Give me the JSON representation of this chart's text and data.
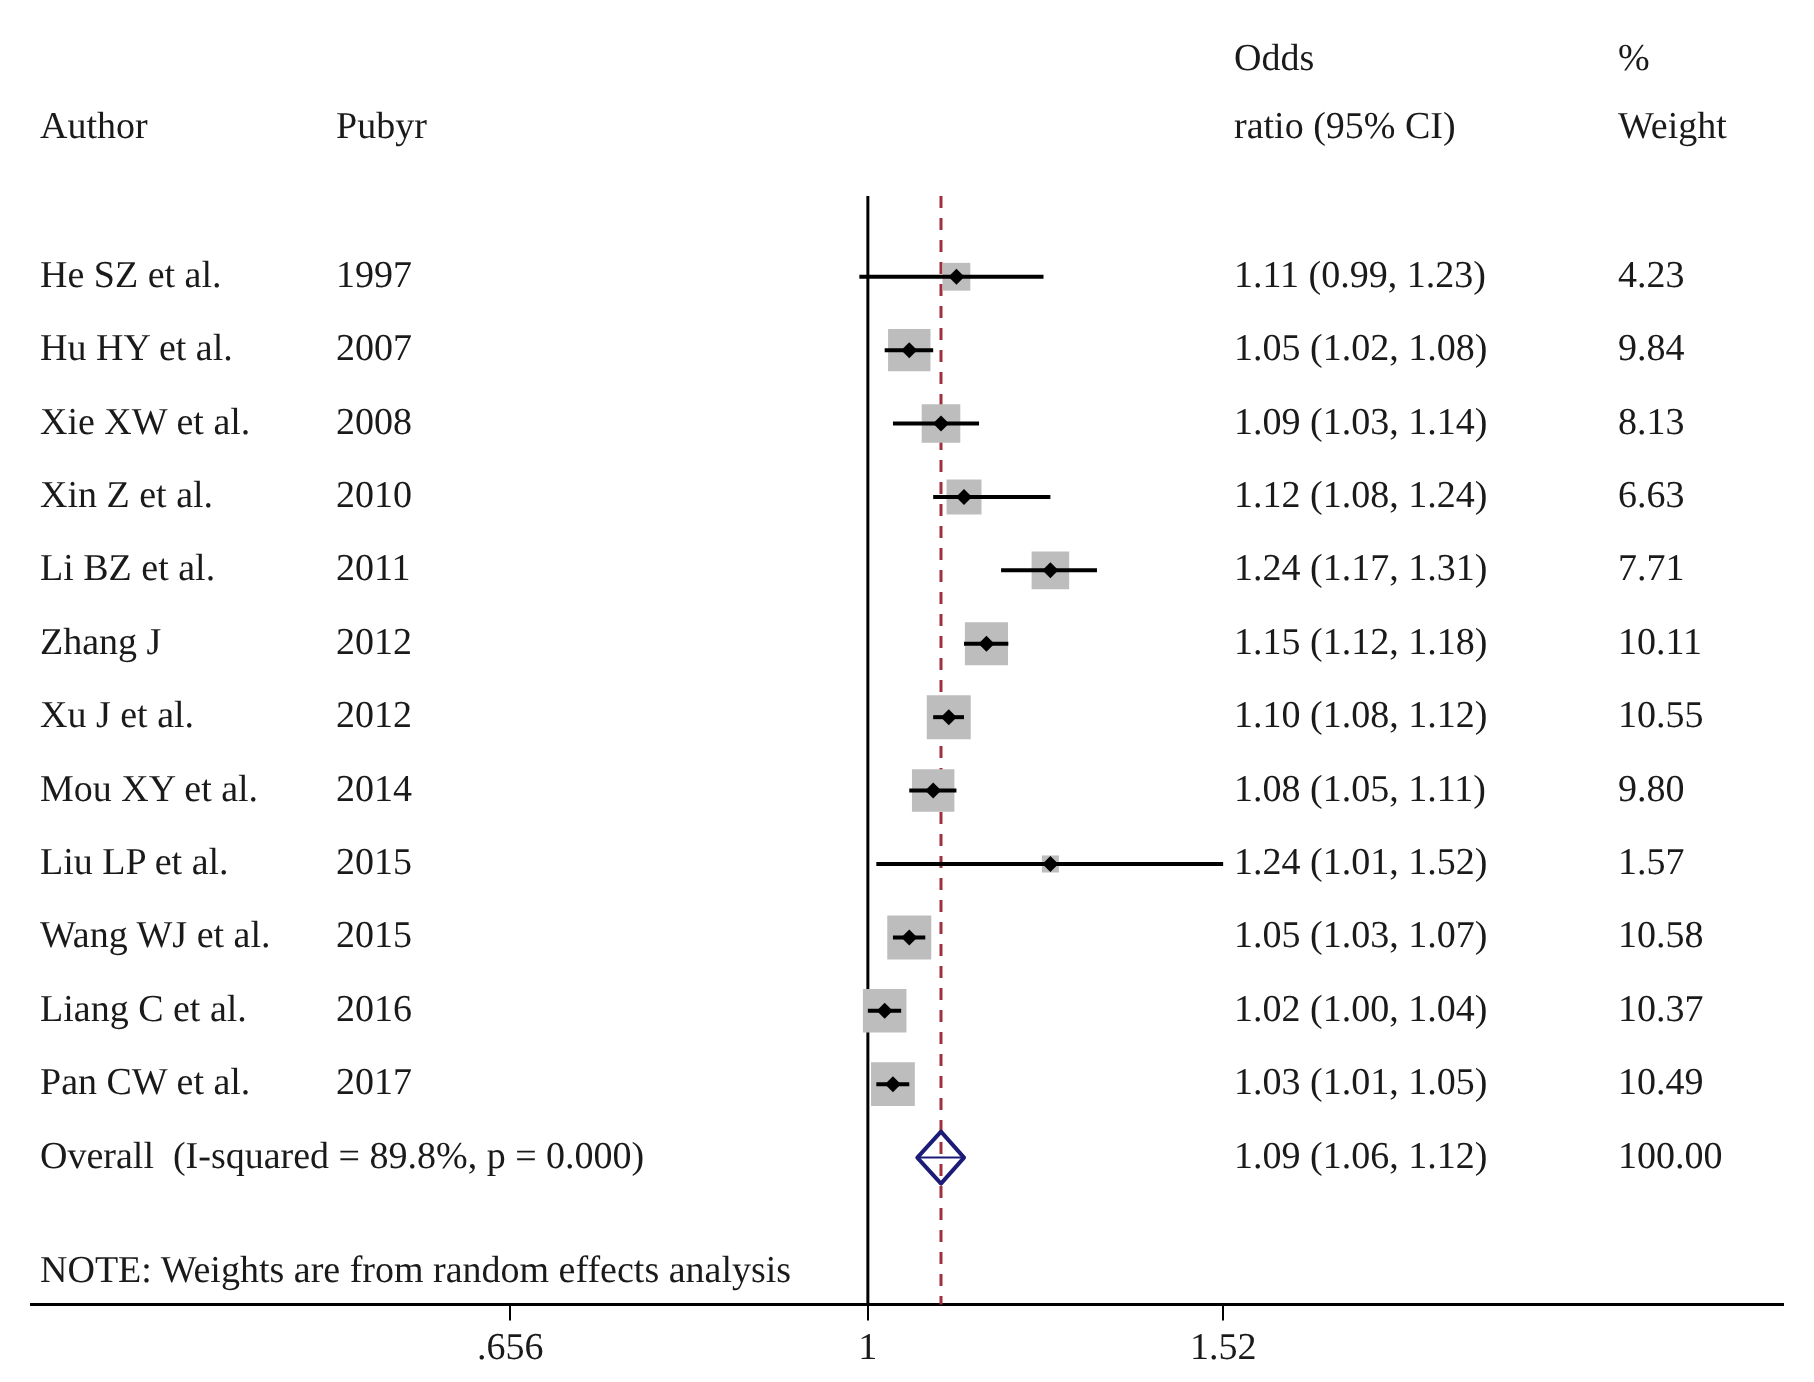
{
  "chart_data": {
    "type": "scatter",
    "orientation": "horizontal",
    "log": "x",
    "grid": false,
    "legend": false,
    "categories": [
      "He SZ et al.",
      "Hu HY et al.",
      "Xie XW et al.",
      "Xin Z et al.",
      "Li BZ et al.",
      "Zhang J",
      "Xu J et al.",
      "Mou XY et al.",
      "Liu LP et al.",
      "Wang WJ et al.",
      "Liang C et al.",
      "Pan CW et al.",
      "Overall  (I-squared = 89.8%, p = 0.000)"
    ],
    "series": [
      {
        "marker": "square",
        "color": "#bdbdbd",
        "values": [
          1.11,
          1.05,
          1.09,
          1.12,
          1.24,
          1.15,
          1.1,
          1.08,
          1.24,
          1.05,
          1.02,
          1.03,
          null
        ],
        "errors": [
          [
            0.99,
            1.23
          ],
          [
            1.02,
            1.08
          ],
          [
            1.03,
            1.14
          ],
          [
            1.08,
            1.24
          ],
          [
            1.17,
            1.31
          ],
          [
            1.12,
            1.18
          ],
          [
            1.08,
            1.12
          ],
          [
            1.05,
            1.11
          ],
          [
            1.01,
            1.52
          ],
          [
            1.03,
            1.07
          ],
          [
            1.0,
            1.04
          ],
          [
            1.01,
            1.05
          ],
          null
        ],
        "sizes": [
          0.4,
          0.93,
          0.77,
          0.63,
          0.73,
          0.96,
          1.0,
          0.93,
          0.15,
          1,
          0.98,
          0.99,
          null
        ]
      },
      {
        "marker": "diamond",
        "color": "#1c1c78",
        "values": [
          null,
          null,
          null,
          null,
          null,
          null,
          null,
          null,
          null,
          null,
          null,
          null,
          1.09
        ],
        "errors": [
          null,
          null,
          null,
          null,
          null,
          null,
          null,
          null,
          null,
          null,
          null,
          null,
          [
            1.06,
            1.12
          ]
        ]
      }
    ],
    "xlim": [
      0.373,
      2.94
    ],
    "xticks": [
      {
        "value": 0.656,
        "label": ".656"
      },
      1,
      1.52
    ],
    "ref_lines": [
      {
        "axis": "x",
        "value": 1,
        "color": "#000000",
        "line_style": "solid"
      },
      {
        "axis": "x",
        "value": 1.09,
        "color": "#a0303a",
        "line_style": "dashed"
      }
    ],
    "annotations": [
      "Author",
      "Pubyr",
      "Odds\nratio (95% CI)",
      "%\nWeight",
      "NOTE: Weights are from random effects analysis",
      "1997",
      "2007",
      "2008",
      "2010",
      "2011",
      "2012",
      "2012",
      "2014",
      "2015",
      "2015",
      "2016",
      "2017",
      "1.11 (0.99, 1.23)",
      "1.05 (1.02, 1.08)",
      "1.09 (1.03, 1.14)",
      "1.12 (1.08, 1.24)",
      "1.24 (1.17, 1.31)",
      "1.15 (1.12, 1.18)",
      "1.10 (1.08, 1.12)",
      "1.08 (1.05, 1.11)",
      "1.24 (1.01, 1.52)",
      "1.05 (1.03, 1.07)",
      "1.02 (1.00, 1.04)",
      "1.03 (1.01, 1.05)",
      "1.09 (1.06, 1.12)",
      "4.23",
      "9.84",
      "8.13",
      "6.63",
      "7.71",
      "10.11",
      "10.55",
      "9.80",
      "1.57",
      "10.58",
      "10.37",
      "10.49",
      "100.00"
    ]
  }
}
